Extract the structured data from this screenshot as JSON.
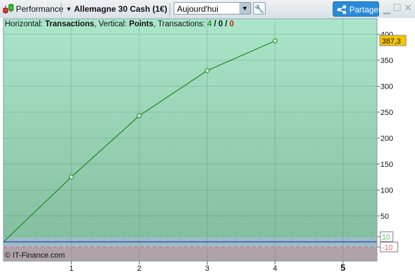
{
  "toolbar": {
    "title": "Performance",
    "instrument": "Allemagne 30 Cash (1€)",
    "period": "Aujourd'hui",
    "share": "Partager",
    "icons": [
      "candlestick-icon",
      "dropdown-arrow-icon",
      "wrench-icon",
      "share-icon",
      "minimize-icon",
      "maximize-icon",
      "close-icon"
    ]
  },
  "header": {
    "h_label": "Horizontal: ",
    "h_value": "Transactions",
    "v_label": ", Vertical: ",
    "v_value": "Points",
    "t_label": ", Transactions: ",
    "t_win": "4",
    "t_sep1": " / ",
    "t_zero": "0",
    "t_sep2": " / ",
    "t_loss": "0"
  },
  "copyright": "© IT-Finance.com",
  "chart_data": {
    "type": "line",
    "xlabel": "",
    "ylabel": "",
    "x": [
      0,
      1,
      2,
      3,
      4
    ],
    "values": [
      0,
      125,
      243,
      330,
      387.3
    ],
    "xlim": [
      0,
      5.5
    ],
    "ylim": [
      -37,
      430
    ],
    "xticks": [
      "1",
      "2",
      "3",
      "4",
      "5"
    ],
    "yticks": [
      "50",
      "100",
      "150",
      "200",
      "250",
      "300",
      "350",
      "400"
    ],
    "last_value_label": "387,3",
    "upper_band": {
      "value": 10,
      "label": "10",
      "color": "#5dc85d"
    },
    "lower_band": {
      "value": -10,
      "label": "-10",
      "color": "#e86060"
    },
    "grid": true,
    "colors": {
      "line": "#1e8a1e",
      "zero_line": "#2a3aa8",
      "background_top": "#abe6ca",
      "background_bottom": "#84bea0",
      "label_bg": "#f7c500"
    }
  }
}
